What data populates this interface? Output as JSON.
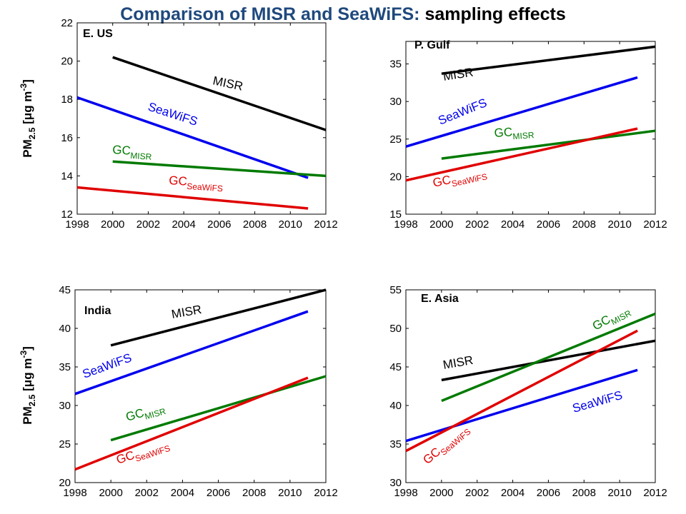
{
  "title": {
    "part1": "Comparison of MISR",
    "part2": " and SeaWiFS:",
    "part3": " sampling effects"
  },
  "colors": {
    "MISR": "#000000",
    "SeaWiFS": "#0000ee",
    "GC_MISR": "#007a00",
    "GC_SeaWiFS": "#e00000",
    "title_blue": "#1f497d"
  },
  "ylabel_text": {
    "main": "PM",
    "sub": "2.5",
    "unit": " [μg m",
    "sup": "-3",
    "close": "]"
  },
  "series_labels": {
    "MISR": {
      "main": "MISR",
      "sub": ""
    },
    "SeaWiFS": {
      "main": "SeaWiFS",
      "sub": ""
    },
    "GC_MISR": {
      "main": "GC",
      "sub": "MISR"
    },
    "GC_SeaWiFS": {
      "main": "GC",
      "sub": "SeaWiFS"
    }
  },
  "chart_data": [
    {
      "type": "line",
      "region": "E. US",
      "xlim": [
        1998,
        2012
      ],
      "ylim": [
        12,
        22
      ],
      "xticks": [
        1998,
        2000,
        2002,
        2004,
        2006,
        2008,
        2010,
        2012
      ],
      "yticks": [
        12,
        14,
        16,
        18,
        20,
        22
      ],
      "series": [
        {
          "key": "MISR",
          "x": [
            2000,
            2012
          ],
          "y": [
            20.2,
            16.4
          ]
        },
        {
          "key": "SeaWiFS",
          "x": [
            1998,
            2011
          ],
          "y": [
            18.1,
            13.9
          ]
        },
        {
          "key": "GC_MISR",
          "x": [
            2000,
            2012
          ],
          "y": [
            14.75,
            14.0
          ]
        },
        {
          "key": "GC_SeaWiFS",
          "x": [
            1998,
            2011
          ],
          "y": [
            13.4,
            12.3
          ]
        }
      ]
    },
    {
      "type": "line",
      "region": "P. Gulf",
      "xlim": [
        1998,
        2012
      ],
      "ylim": [
        15,
        38
      ],
      "xticks": [
        1998,
        2000,
        2002,
        2004,
        2006,
        2008,
        2010,
        2012
      ],
      "yticks": [
        15,
        20,
        25,
        30,
        35
      ],
      "series": [
        {
          "key": "MISR",
          "x": [
            2000,
            2012
          ],
          "y": [
            33.7,
            37.3
          ]
        },
        {
          "key": "SeaWiFS",
          "x": [
            1998,
            2011
          ],
          "y": [
            24.0,
            33.2
          ]
        },
        {
          "key": "GC_MISR",
          "x": [
            2000,
            2012
          ],
          "y": [
            22.4,
            26.1
          ]
        },
        {
          "key": "GC_SeaWiFS",
          "x": [
            1998,
            2011
          ],
          "y": [
            19.5,
            26.4
          ]
        }
      ]
    },
    {
      "type": "line",
      "region": "India",
      "xlim": [
        1998,
        2012
      ],
      "ylim": [
        20,
        45
      ],
      "xticks": [
        1998,
        2000,
        2002,
        2004,
        2006,
        2008,
        2010,
        2012
      ],
      "yticks": [
        20,
        25,
        30,
        35,
        40,
        45
      ],
      "series": [
        {
          "key": "MISR",
          "x": [
            2000,
            2012
          ],
          "y": [
            37.8,
            45.0
          ]
        },
        {
          "key": "SeaWiFS",
          "x": [
            1998,
            2011
          ],
          "y": [
            31.5,
            42.2
          ]
        },
        {
          "key": "GC_MISR",
          "x": [
            2000,
            2012
          ],
          "y": [
            25.5,
            33.8
          ]
        },
        {
          "key": "GC_SeaWiFS",
          "x": [
            1998,
            2011
          ],
          "y": [
            21.7,
            33.6
          ]
        }
      ]
    },
    {
      "type": "line",
      "region": "E. Asia",
      "xlim": [
        1998,
        2012
      ],
      "ylim": [
        30,
        55
      ],
      "xticks": [
        1998,
        2000,
        2002,
        2004,
        2006,
        2008,
        2010,
        2012
      ],
      "yticks": [
        30,
        35,
        40,
        45,
        50,
        55
      ],
      "series": [
        {
          "key": "MISR",
          "x": [
            2000,
            2012
          ],
          "y": [
            43.3,
            48.4
          ]
        },
        {
          "key": "SeaWiFS",
          "x": [
            1998,
            2011
          ],
          "y": [
            35.4,
            44.6
          ]
        },
        {
          "key": "GC_MISR",
          "x": [
            2000,
            2012
          ],
          "y": [
            40.6,
            51.9
          ]
        },
        {
          "key": "GC_SeaWiFS",
          "x": [
            1998,
            2011
          ],
          "y": [
            34.1,
            49.7
          ]
        }
      ]
    }
  ]
}
